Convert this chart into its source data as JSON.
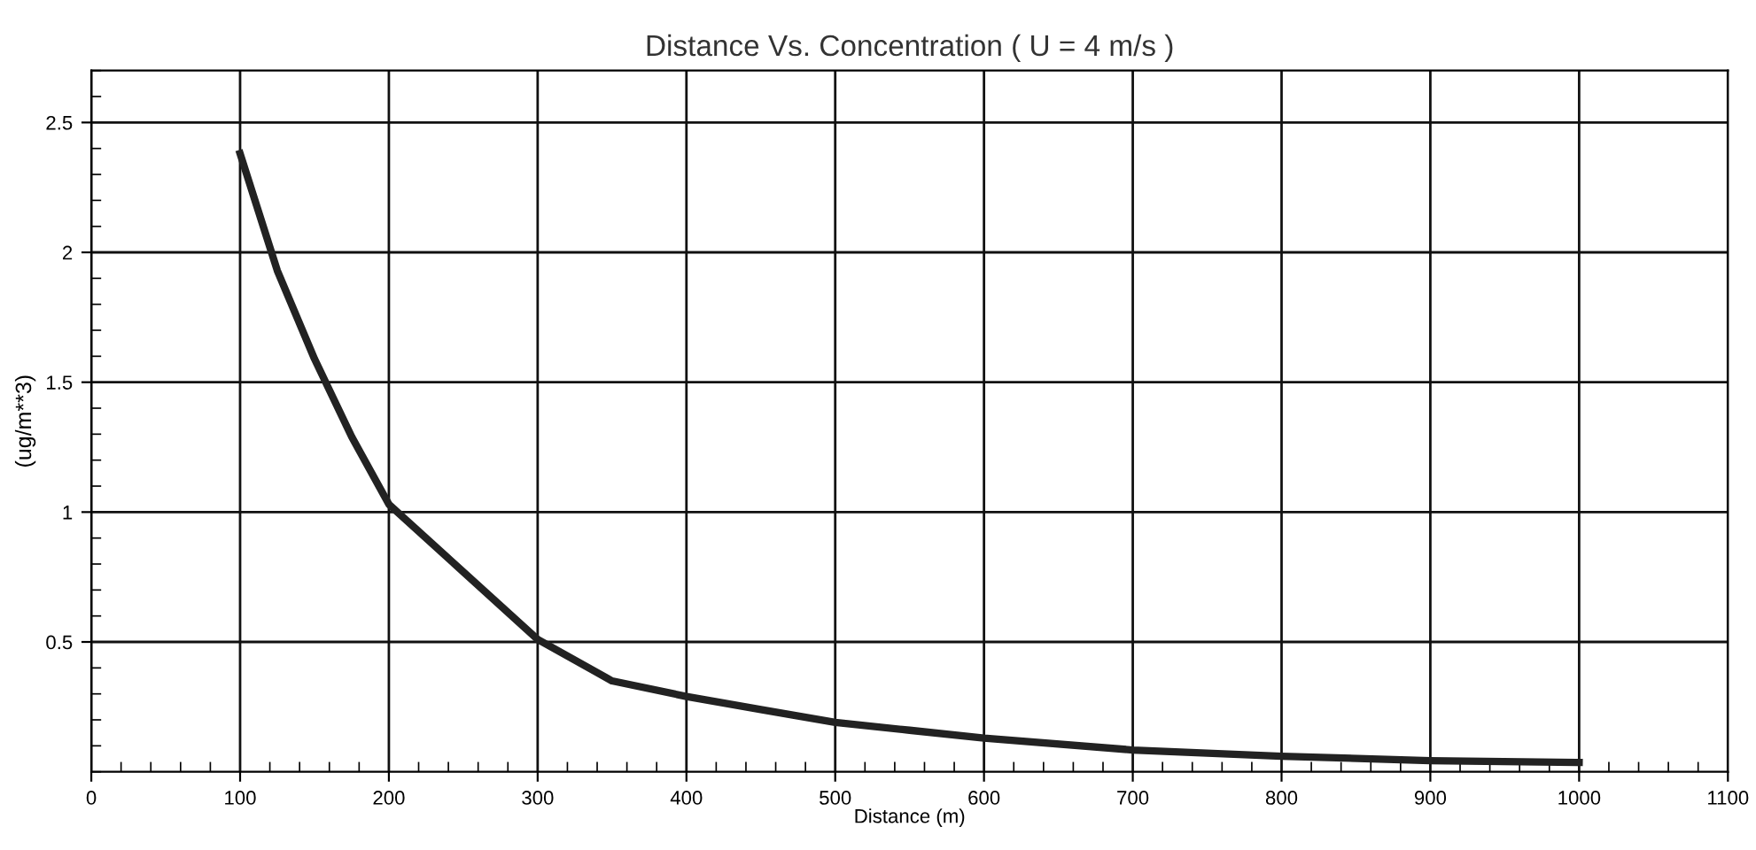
{
  "chart_data": {
    "type": "line",
    "title": "Distance Vs. Concentration ( U = 4 m/s )",
    "xlabel": "Distance (m)",
    "ylabel": "(ug/m**3)",
    "x": [
      100,
      125,
      150,
      175,
      200,
      250,
      300,
      350,
      400,
      450,
      500,
      550,
      600,
      700,
      800,
      900,
      1000
    ],
    "series": [
      {
        "color": "#222222",
        "values": [
          2.38,
          1.93,
          1.59,
          1.29,
          1.03,
          0.77,
          0.51,
          0.35,
          0.29,
          0.24,
          0.19,
          0.16,
          0.13,
          0.084,
          0.06,
          0.043,
          0.036
        ]
      }
    ],
    "xlim": [
      0,
      1100
    ],
    "xticks": [
      0,
      100,
      200,
      300,
      400,
      500,
      600,
      700,
      800,
      900,
      1000,
      1100
    ],
    "ylim": [
      0,
      2.7
    ],
    "yticks": [
      0.5,
      1,
      1.5,
      2,
      2.5
    ],
    "grid": true,
    "legend": false,
    "marker": "none",
    "line_style": "solid"
  }
}
